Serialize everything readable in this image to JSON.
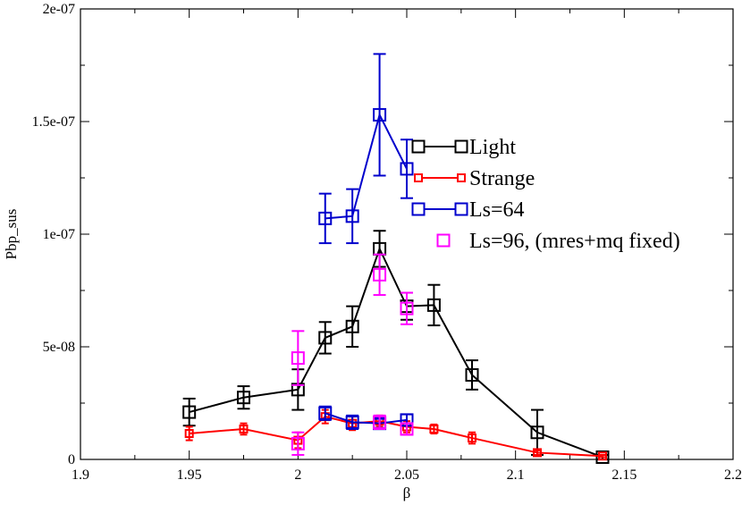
{
  "chart_data": {
    "type": "scatter",
    "title": "",
    "xlabel": "β",
    "ylabel": "Pbp_sus",
    "xlim": [
      1.9,
      2.2
    ],
    "ylim": [
      0,
      2e-07
    ],
    "x_ticks": [
      1.9,
      1.95,
      2.0,
      2.05,
      2.1,
      2.15,
      2.2
    ],
    "x_tick_labels": [
      "1.9",
      "1.95",
      "2",
      "2.05",
      "2.1",
      "2.15",
      "2.2"
    ],
    "y_ticks": [
      0,
      5e-08,
      1e-07,
      1.5e-07,
      2e-07
    ],
    "y_tick_labels": [
      "0",
      "5e-08",
      "1e-07",
      "1.5e-07",
      "2e-07"
    ],
    "grid": false,
    "legend_position": "right-center",
    "series": [
      {
        "name": "Light",
        "color": "#000000",
        "marker": "square",
        "line": true,
        "points": [
          {
            "x": 1.95,
            "y": 2.1e-08,
            "err": 6e-09
          },
          {
            "x": 1.975,
            "y": 2.75e-08,
            "err": 5e-09
          },
          {
            "x": 2.0,
            "y": 3.1e-08,
            "err": 9e-09
          },
          {
            "x": 2.0125,
            "y": 5.4e-08,
            "err": 7e-09
          },
          {
            "x": 2.025,
            "y": 5.9e-08,
            "err": 9e-09
          },
          {
            "x": 2.0375,
            "y": 9.35e-08,
            "err": 8e-09
          },
          {
            "x": 2.05,
            "y": 6.8e-08,
            "err": 6e-09
          },
          {
            "x": 2.0625,
            "y": 6.85e-08,
            "err": 9e-09
          },
          {
            "x": 2.08,
            "y": 3.75e-08,
            "err": 6.5e-09
          },
          {
            "x": 2.11,
            "y": 1.2e-08,
            "err": 1e-08
          },
          {
            "x": 2.14,
            "y": 1e-09,
            "err": 1e-09
          }
        ]
      },
      {
        "name": "Strange",
        "color": "#ff0000",
        "marker": "small-square",
        "line": true,
        "points": [
          {
            "x": 1.95,
            "y": 1.15e-08,
            "err": 3e-09
          },
          {
            "x": 1.975,
            "y": 1.35e-08,
            "err": 2.5e-09
          },
          {
            "x": 2.0,
            "y": 8.5e-09,
            "err": 3.5e-09
          },
          {
            "x": 2.0125,
            "y": 1.9e-08,
            "err": 3e-09
          },
          {
            "x": 2.025,
            "y": 1.6e-08,
            "err": 3e-09
          },
          {
            "x": 2.0375,
            "y": 1.7e-08,
            "err": 2.5e-09
          },
          {
            "x": 2.05,
            "y": 1.45e-08,
            "err": 2.5e-09
          },
          {
            "x": 2.0625,
            "y": 1.35e-08,
            "err": 2e-09
          },
          {
            "x": 2.08,
            "y": 9.5e-09,
            "err": 2.5e-09
          },
          {
            "x": 2.11,
            "y": 3e-09,
            "err": 1e-09
          },
          {
            "x": 2.14,
            "y": 1.5e-09,
            "err": 5e-10
          }
        ]
      },
      {
        "name": "Ls=64",
        "color": "#0000cc",
        "marker": "square",
        "line": true,
        "points": [
          {
            "x": 2.0125,
            "y": 1.07e-07,
            "err": 1.1e-08
          },
          {
            "x": 2.025,
            "y": 1.08e-07,
            "err": 1.2e-08
          },
          {
            "x": 2.0375,
            "y": 1.53e-07,
            "err": 2.7e-08
          },
          {
            "x": 2.05,
            "y": 1.29e-07,
            "err": 1.3e-08
          }
        ]
      },
      {
        "name": "Ls=64",
        "color": "#0000cc",
        "marker": "square",
        "line": true,
        "points": [
          {
            "x": 2.0125,
            "y": 2.05e-08,
            "err": 3e-09
          },
          {
            "x": 2.025,
            "y": 1.65e-08,
            "err": 3e-09
          },
          {
            "x": 2.0375,
            "y": 1.6e-08,
            "err": 2e-09
          },
          {
            "x": 2.05,
            "y": 1.75e-08,
            "err": 2.5e-09
          }
        ]
      },
      {
        "name": "Ls=96, (mres+mq fixed)",
        "color": "#ff00ff",
        "marker": "square",
        "line": false,
        "points": [
          {
            "x": 2.0,
            "y": 4.5e-08,
            "err": 1.2e-08
          },
          {
            "x": 2.0,
            "y": 7e-09,
            "err": 5e-09
          },
          {
            "x": 2.0375,
            "y": 8.2e-08,
            "err": 9e-09
          },
          {
            "x": 2.0375,
            "y": 1.65e-08,
            "err": 3e-09
          },
          {
            "x": 2.05,
            "y": 6.7e-08,
            "err": 7e-09
          },
          {
            "x": 2.05,
            "y": 1.35e-08,
            "err": 2.5e-09
          }
        ]
      }
    ],
    "legend": [
      {
        "label": "Light",
        "color": "#000000",
        "marker": "square",
        "line": true
      },
      {
        "label": "Strange",
        "color": "#ff0000",
        "marker": "small-square",
        "line": true
      },
      {
        "label": "Ls=64",
        "color": "#0000cc",
        "marker": "square",
        "line": true
      },
      {
        "label": "Ls=96, (mres+mq fixed)",
        "color": "#ff00ff",
        "marker": "square",
        "line": false
      }
    ]
  }
}
